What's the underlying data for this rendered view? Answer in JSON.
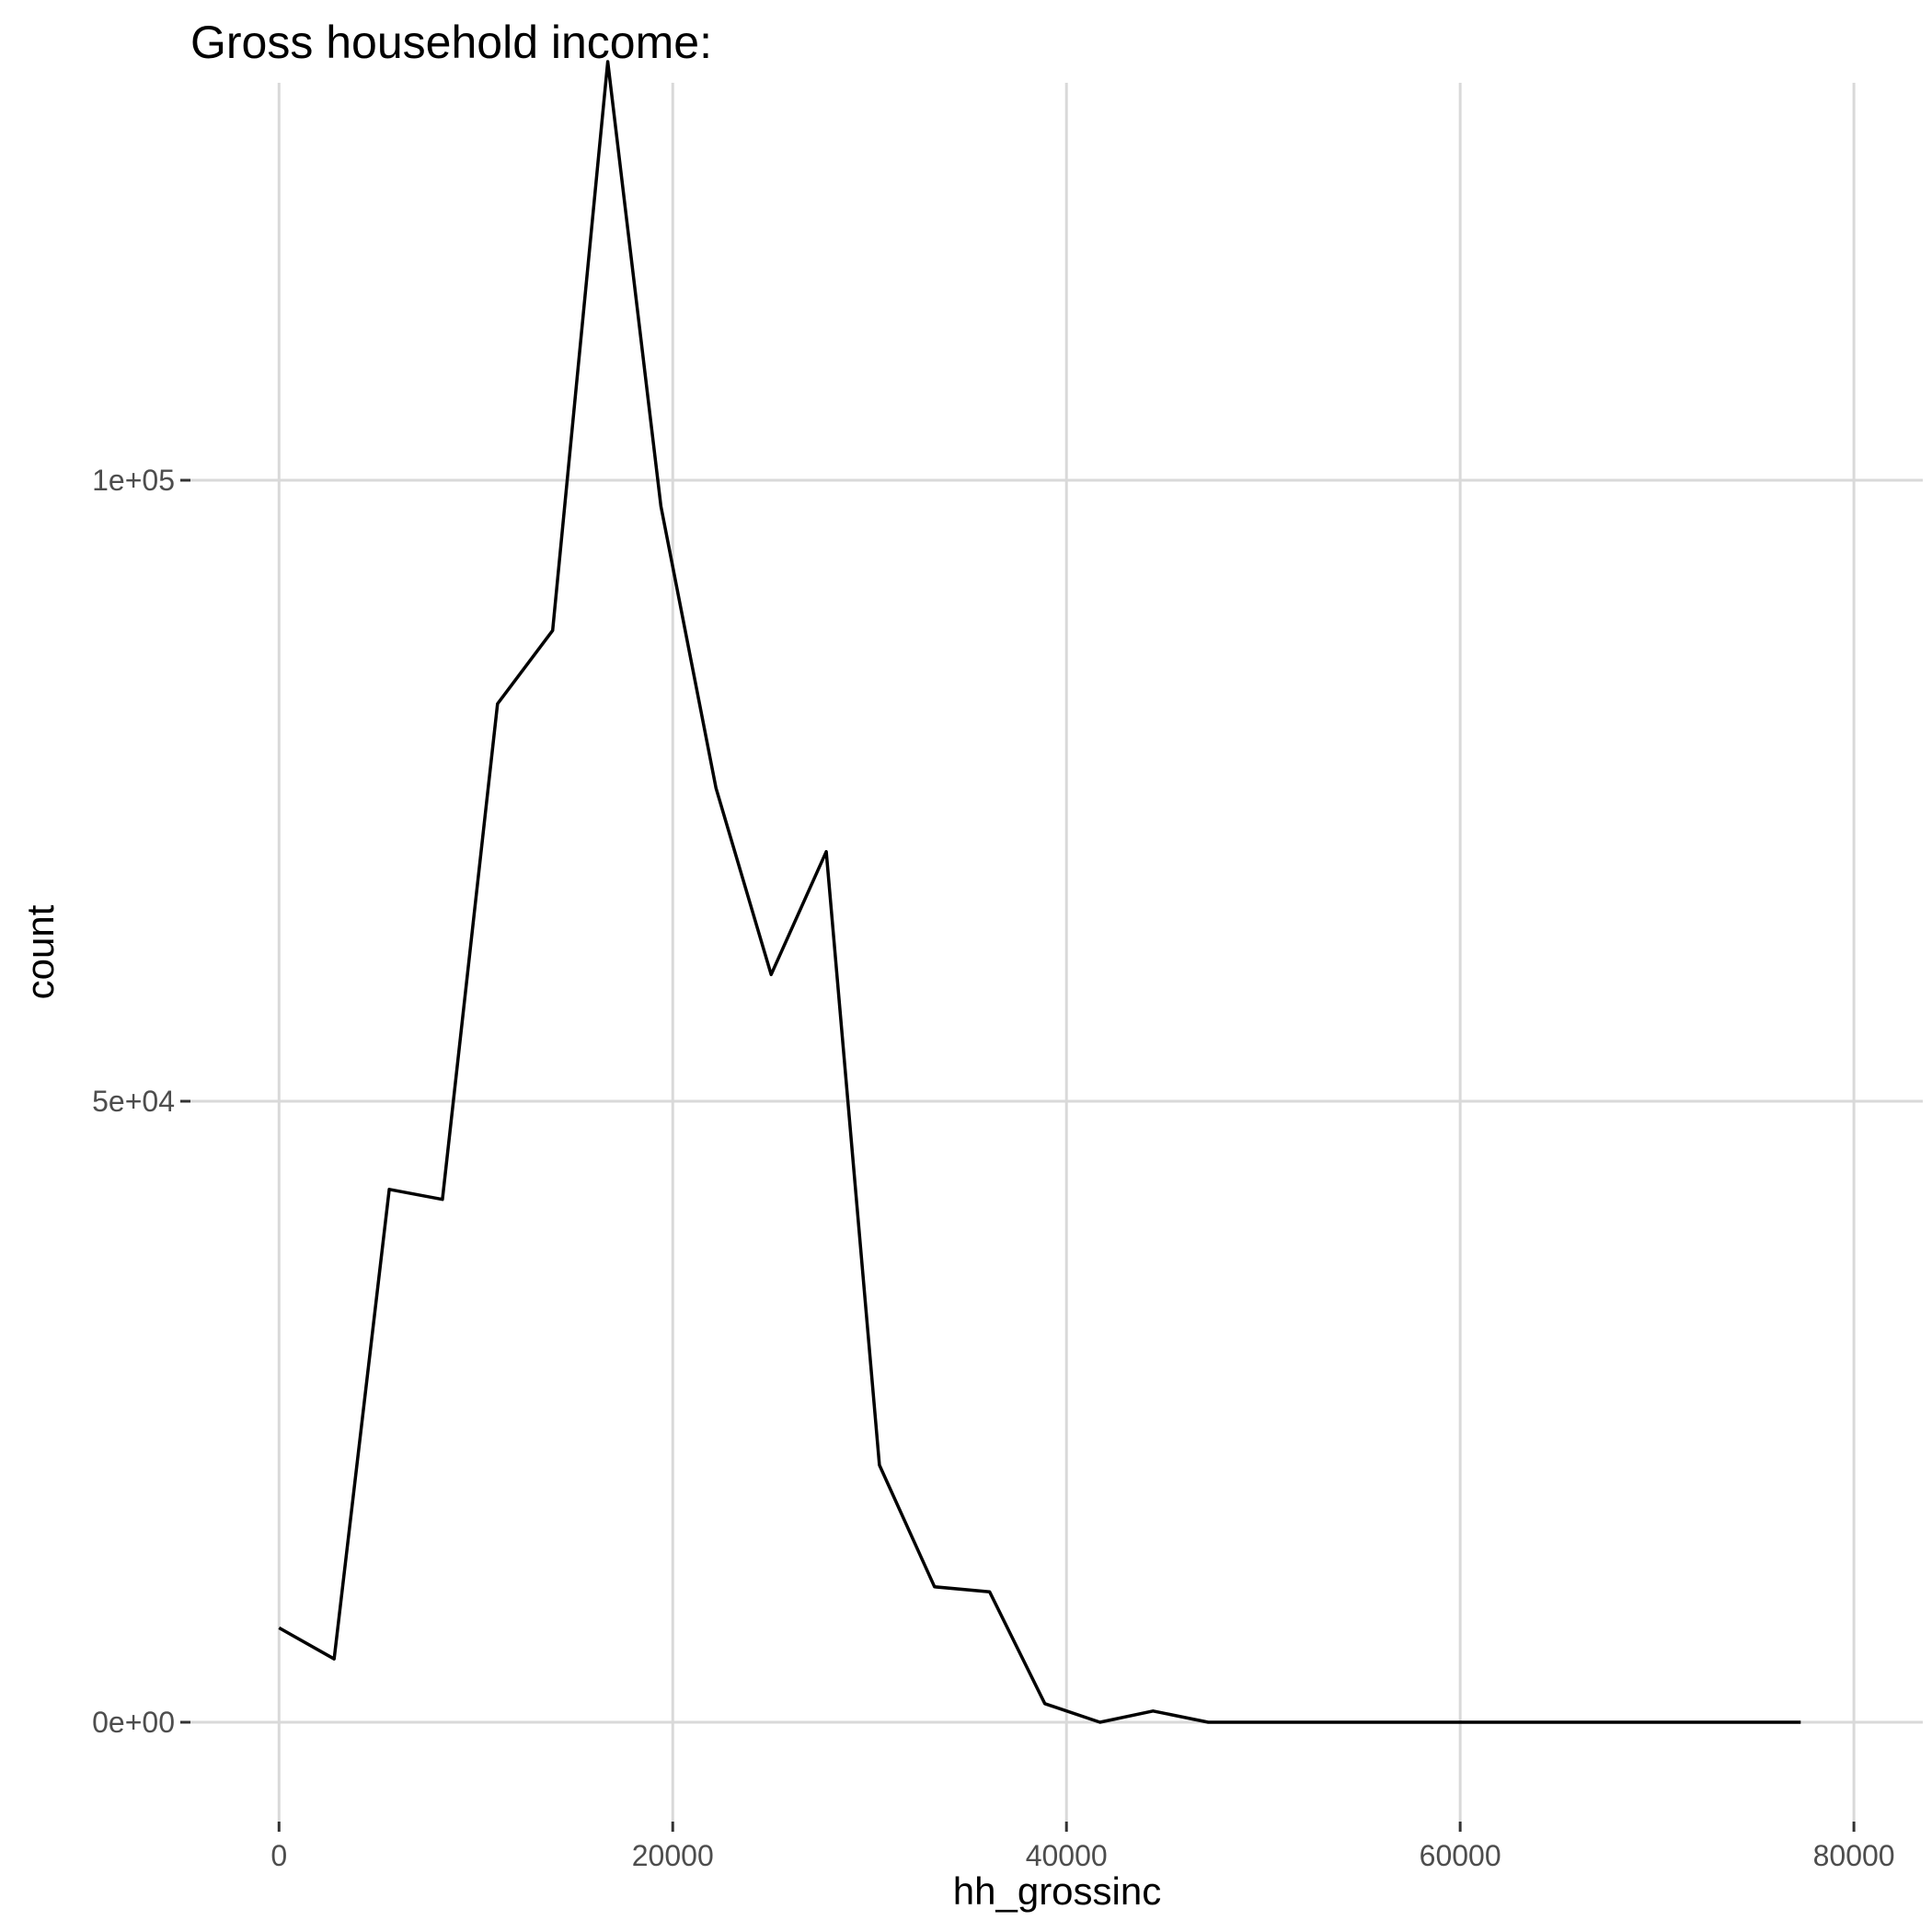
{
  "chart_data": {
    "type": "line",
    "title": "Gross household income:",
    "xlabel": "hh_grossinc",
    "ylabel": "count",
    "xlim": [
      -4500,
      83500
    ],
    "ylim": [
      -8000,
      132000
    ],
    "x_ticks": [
      0,
      20000,
      40000,
      60000,
      80000
    ],
    "x_tick_labels": [
      "0",
      "20000",
      "40000",
      "60000",
      "80000"
    ],
    "y_ticks": [
      0,
      50000,
      100000
    ],
    "y_tick_labels": [
      "0e+00",
      "5e+04",
      "1e+05"
    ],
    "grid": true,
    "legend": "none",
    "series": [
      {
        "color": "#000000",
        "x": [
          0,
          2800,
          5600,
          8300,
          11100,
          13900,
          16700,
          19400,
          22200,
          25000,
          27800,
          30500,
          33300,
          36100,
          38900,
          41700,
          44400,
          47200,
          50000,
          77300
        ],
        "y": [
          7600,
          5100,
          42900,
          42100,
          82000,
          87900,
          133700,
          97900,
          75200,
          60200,
          70100,
          20700,
          10900,
          10500,
          1500,
          0,
          900,
          0,
          0,
          0
        ]
      }
    ]
  }
}
